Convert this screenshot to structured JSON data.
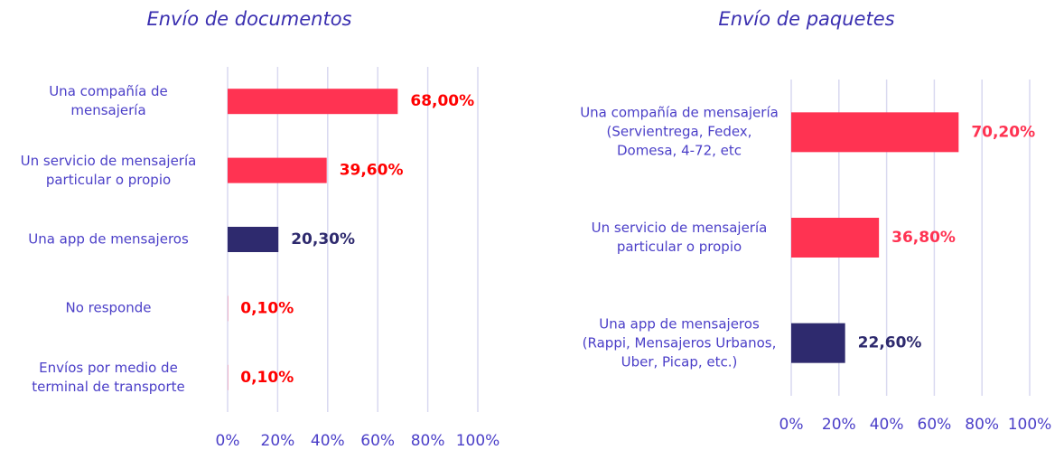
{
  "chart_data": [
    {
      "type": "barh",
      "title": "Envío de documentos",
      "categories": [
        "Una compañía de\nmensajería",
        "Un servicio de mensajería\nparticular o propio",
        "Una app de mensajeros",
        "No responde",
        "Envíos por medio de\nterminal de transporte"
      ],
      "values": [
        68,
        39.6,
        20.3,
        0.1,
        0.1
      ],
      "value_labels": [
        "68,00%",
        "39,60%",
        "20,30%",
        "0,10%",
        "0,10%"
      ],
      "colors": [
        "#ff3352",
        "#ff3352",
        "#2e2a6e",
        "#ff3352",
        "#ff3352"
      ],
      "label_colors": [
        "#ff0000",
        "#ff0000",
        "#2e2a6e",
        "#ff0000",
        "#ff0000"
      ],
      "xlim": [
        0,
        100
      ],
      "xticks": [
        {
          "value": 0,
          "label": "0%"
        },
        {
          "value": 20,
          "label": "20%"
        },
        {
          "value": 40,
          "label": "40%"
        },
        {
          "value": 60,
          "label": "60%"
        },
        {
          "value": 80,
          "label": "80%"
        },
        {
          "value": 100,
          "label": "100%"
        }
      ],
      "grid": true
    },
    {
      "type": "barh",
      "title": "Envío de paquetes",
      "categories": [
        "Una compañía de mensajería\n(Servientrega, Fedex,\nDomesa, 4-72, etc",
        "Un servicio de mensajería\nparticular o propio",
        "Una app de mensajeros\n(Rappi, Mensajeros Urbanos,\nUber, Picap, etc.)"
      ],
      "values": [
        70.2,
        36.8,
        22.6
      ],
      "value_labels": [
        "70,20%",
        "36,80%",
        "22,60%"
      ],
      "colors": [
        "#ff3352",
        "#ff3352",
        "#2e2a6e"
      ],
      "label_colors": [
        "#ff3352",
        "#ff3352",
        "#2e2a6e"
      ],
      "xlim": [
        0,
        100
      ],
      "xticks": [
        {
          "value": 0,
          "label": "0%"
        },
        {
          "value": 20,
          "label": "20%"
        },
        {
          "value": 40,
          "label": "40%"
        },
        {
          "value": 60,
          "label": "60%"
        },
        {
          "value": 80,
          "label": "80%"
        },
        {
          "value": 100,
          "label": "100%"
        }
      ],
      "grid": true
    }
  ]
}
